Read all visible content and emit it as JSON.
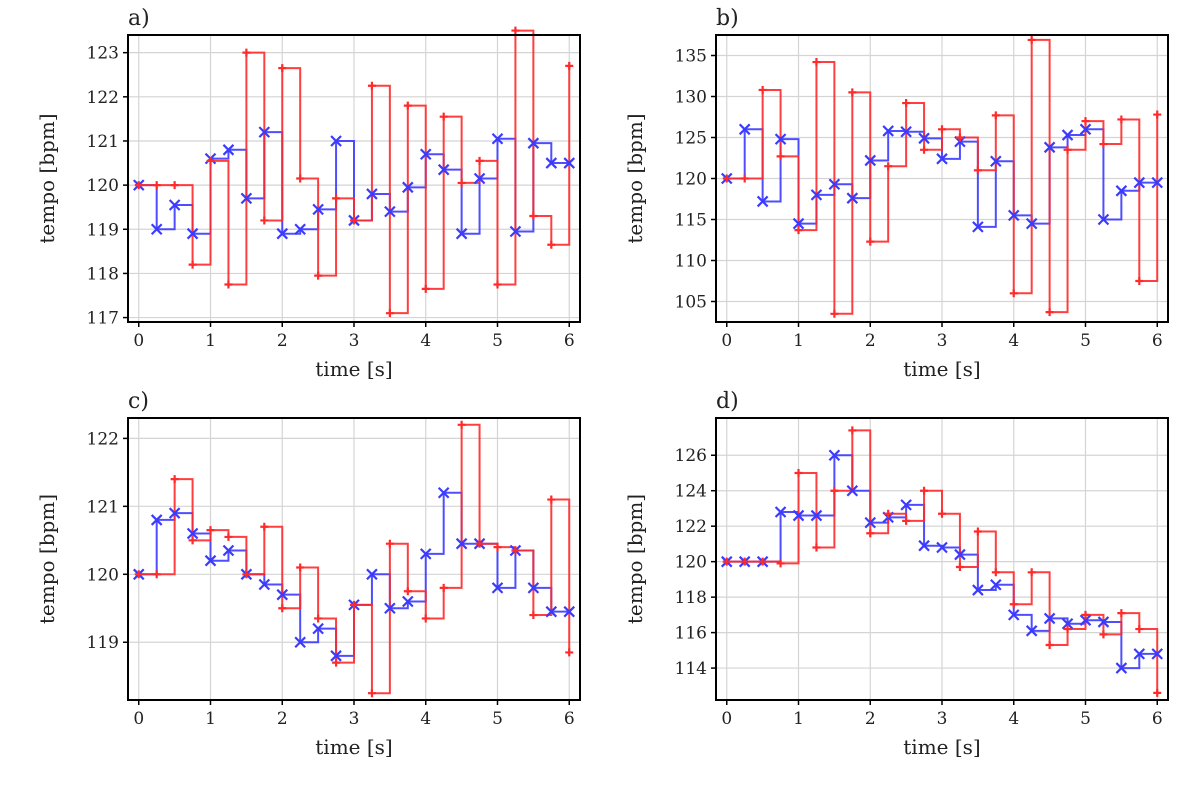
{
  "chart_data": [
    {
      "type": "line",
      "panel_label": "a)",
      "xlabel": "time [s]",
      "ylabel": "tempo [bpm]",
      "xlim": [
        -0.15,
        6.15
      ],
      "ylim": [
        116.9,
        123.4
      ],
      "xticks": [
        0,
        1,
        2,
        3,
        4,
        5,
        6
      ],
      "yticks": [
        117,
        118,
        119,
        120,
        121,
        122,
        123
      ],
      "grid": true,
      "step": "post",
      "series": [
        {
          "color": "#3b3bff",
          "marker": "x",
          "x": [
            0,
            0.25,
            0.5,
            0.75,
            1.0,
            1.25,
            1.5,
            1.75,
            2.0,
            2.25,
            2.5,
            2.75,
            3.0,
            3.25,
            3.5,
            3.75,
            4.0,
            4.25,
            4.5,
            4.75,
            5.0,
            5.25,
            5.5,
            5.75,
            6.0
          ],
          "y": [
            120.0,
            119.0,
            119.55,
            118.9,
            120.6,
            120.8,
            119.7,
            121.2,
            118.9,
            119.0,
            119.45,
            121.0,
            119.2,
            119.8,
            119.4,
            119.95,
            120.7,
            120.35,
            118.9,
            120.15,
            121.05,
            118.95,
            120.95,
            120.5,
            120.5
          ]
        },
        {
          "color": "#ff2a2a",
          "marker": "+",
          "x": [
            0,
            0.25,
            0.5,
            0.75,
            1.0,
            1.25,
            1.5,
            1.75,
            2.0,
            2.25,
            2.5,
            2.75,
            3.0,
            3.25,
            3.5,
            3.75,
            4.0,
            4.25,
            4.5,
            4.75,
            5.0,
            5.25,
            5.5,
            5.75,
            6.0
          ],
          "y": [
            120.0,
            120.0,
            120.0,
            118.2,
            120.55,
            117.75,
            123.0,
            119.2,
            122.65,
            120.15,
            117.95,
            119.7,
            119.2,
            122.25,
            117.1,
            121.8,
            117.65,
            121.55,
            120.05,
            120.55,
            117.75,
            123.5,
            119.3,
            118.65,
            122.7
          ]
        }
      ]
    },
    {
      "type": "line",
      "panel_label": "b)",
      "xlabel": "time [s]",
      "ylabel": "tempo [bpm]",
      "xlim": [
        -0.15,
        6.15
      ],
      "ylim": [
        102.5,
        137.5
      ],
      "xticks": [
        0,
        1,
        2,
        3,
        4,
        5,
        6
      ],
      "yticks": [
        105,
        110,
        115,
        120,
        125,
        130,
        135
      ],
      "grid": true,
      "step": "post",
      "series": [
        {
          "color": "#3b3bff",
          "marker": "x",
          "x": [
            0,
            0.25,
            0.5,
            0.75,
            1.0,
            1.25,
            1.5,
            1.75,
            2.0,
            2.25,
            2.5,
            2.75,
            3.0,
            3.25,
            3.5,
            3.75,
            4.0,
            4.25,
            4.5,
            4.75,
            5.0,
            5.25,
            5.5,
            5.75,
            6.0
          ],
          "y": [
            120.0,
            126.0,
            117.2,
            124.8,
            114.5,
            118.0,
            119.3,
            117.6,
            122.2,
            125.8,
            125.7,
            124.9,
            122.4,
            124.5,
            114.1,
            122.1,
            115.5,
            114.5,
            123.8,
            125.3,
            126.0,
            115.0,
            118.5,
            119.5,
            119.5
          ]
        },
        {
          "color": "#ff2a2a",
          "marker": "+",
          "x": [
            0,
            0.25,
            0.5,
            0.75,
            1.0,
            1.25,
            1.5,
            1.75,
            2.0,
            2.25,
            2.5,
            2.75,
            3.0,
            3.25,
            3.5,
            3.75,
            4.0,
            4.25,
            4.5,
            4.75,
            5.0,
            5.25,
            5.5,
            5.75,
            6.0
          ],
          "y": [
            120.0,
            120.0,
            130.8,
            122.7,
            113.7,
            134.2,
            103.5,
            130.5,
            112.3,
            121.5,
            129.2,
            123.5,
            126.0,
            125.0,
            121.0,
            127.7,
            106.0,
            136.9,
            103.7,
            123.5,
            127.0,
            124.2,
            127.2,
            107.5,
            127.8
          ]
        }
      ]
    },
    {
      "type": "line",
      "panel_label": "c)",
      "xlabel": "time [s]",
      "ylabel": "tempo [bpm]",
      "xlim": [
        -0.15,
        6.15
      ],
      "ylim": [
        118.15,
        122.3
      ],
      "xticks": [
        0,
        1,
        2,
        3,
        4,
        5,
        6
      ],
      "yticks": [
        119,
        120,
        121,
        122
      ],
      "grid": true,
      "step": "post",
      "series": [
        {
          "color": "#3b3bff",
          "marker": "x",
          "x": [
            0,
            0.25,
            0.5,
            0.75,
            1.0,
            1.25,
            1.5,
            1.75,
            2.0,
            2.25,
            2.5,
            2.75,
            3.0,
            3.25,
            3.5,
            3.75,
            4.0,
            4.25,
            4.5,
            4.75,
            5.0,
            5.25,
            5.5,
            5.75,
            6.0
          ],
          "y": [
            120.0,
            120.8,
            120.9,
            120.6,
            120.2,
            120.35,
            120.0,
            119.85,
            119.7,
            119.0,
            119.2,
            118.8,
            119.55,
            120.0,
            119.5,
            119.6,
            120.3,
            121.2,
            120.45,
            120.45,
            119.8,
            120.35,
            119.8,
            119.45,
            119.45
          ]
        },
        {
          "color": "#ff2a2a",
          "marker": "+",
          "x": [
            0,
            0.25,
            0.5,
            0.75,
            1.0,
            1.25,
            1.5,
            1.75,
            2.0,
            2.25,
            2.5,
            2.75,
            3.0,
            3.25,
            3.5,
            3.75,
            4.0,
            4.25,
            4.5,
            4.75,
            5.0,
            5.25,
            5.5,
            5.75,
            6.0
          ],
          "y": [
            120.0,
            120.0,
            121.4,
            120.5,
            120.65,
            120.55,
            120.0,
            120.7,
            119.5,
            120.1,
            119.35,
            118.7,
            119.55,
            118.25,
            120.45,
            119.75,
            119.35,
            119.8,
            122.2,
            120.45,
            120.4,
            120.35,
            119.4,
            121.1,
            118.85
          ]
        }
      ]
    },
    {
      "type": "line",
      "panel_label": "d)",
      "xlabel": "time [s]",
      "ylabel": "tempo [bpm]",
      "xlim": [
        -0.15,
        6.15
      ],
      "ylim": [
        112.2,
        128.1
      ],
      "xticks": [
        0,
        1,
        2,
        3,
        4,
        5,
        6
      ],
      "yticks": [
        114,
        116,
        118,
        120,
        122,
        124,
        126
      ],
      "grid": true,
      "step": "post",
      "series": [
        {
          "color": "#3b3bff",
          "marker": "x",
          "x": [
            0,
            0.25,
            0.5,
            0.75,
            1.0,
            1.25,
            1.5,
            1.75,
            2.0,
            2.25,
            2.5,
            2.75,
            3.0,
            3.25,
            3.5,
            3.75,
            4.0,
            4.25,
            4.5,
            4.75,
            5.0,
            5.25,
            5.5,
            5.75,
            6.0
          ],
          "y": [
            120.0,
            120.0,
            120.0,
            122.8,
            122.6,
            122.6,
            126.0,
            124.0,
            122.2,
            122.5,
            123.2,
            120.9,
            120.8,
            120.4,
            118.4,
            118.7,
            117.0,
            116.1,
            116.8,
            116.5,
            116.7,
            116.6,
            114.0,
            114.8,
            114.8
          ]
        },
        {
          "color": "#ff2a2a",
          "marker": "+",
          "x": [
            0,
            0.25,
            0.5,
            0.75,
            1.0,
            1.25,
            1.5,
            1.75,
            2.0,
            2.25,
            2.5,
            2.75,
            3.0,
            3.25,
            3.5,
            3.75,
            4.0,
            4.25,
            4.5,
            4.75,
            5.0,
            5.25,
            5.5,
            5.75,
            6.0
          ],
          "y": [
            120.0,
            120.0,
            120.0,
            119.9,
            125.0,
            120.8,
            124.0,
            127.4,
            121.6,
            122.7,
            122.3,
            124.0,
            122.7,
            119.7,
            121.7,
            119.4,
            117.6,
            119.4,
            115.3,
            116.2,
            117.0,
            115.9,
            117.1,
            116.2,
            112.6
          ]
        }
      ]
    }
  ]
}
